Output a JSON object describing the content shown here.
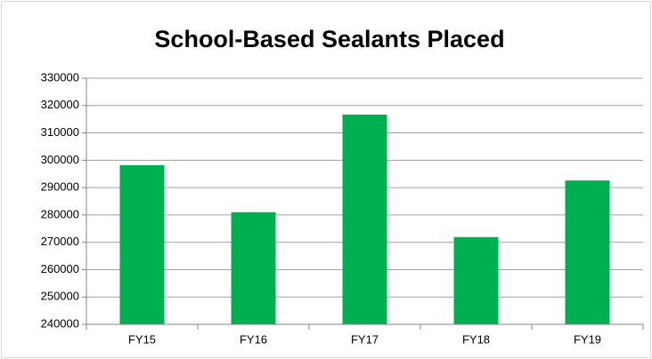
{
  "chart_data": {
    "type": "bar",
    "title": "School-Based Sealants Placed",
    "categories": [
      "FY15",
      "FY16",
      "FY17",
      "FY18",
      "FY19"
    ],
    "values": [
      298200,
      281000,
      316700,
      271900,
      292600
    ],
    "color": "#00b050",
    "ylim": [
      240000,
      330000
    ],
    "yticks": [
      240000,
      250000,
      260000,
      270000,
      280000,
      290000,
      300000,
      310000,
      320000,
      330000
    ],
    "grid": true
  }
}
